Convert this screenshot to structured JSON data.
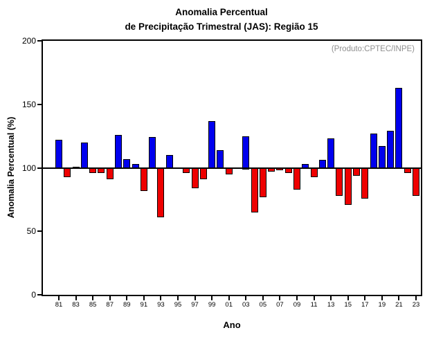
{
  "title": {
    "line1": "Anomalia Percentual",
    "line2": "de Precipitação Trimestral (JAS): Região 15"
  },
  "annotation": "(Produto:CPTEC/INPE)",
  "chart_data": {
    "type": "bar",
    "title": "Anomalia Percentual de Precipitação Trimestral (JAS): Região 15",
    "xlabel": "Ano",
    "ylabel": "Anomalia Percentual (%)",
    "ylim": [
      0,
      200
    ],
    "baseline": 100,
    "yticks": [
      0,
      50,
      100,
      150,
      200
    ],
    "xtick_labels": [
      "81",
      "83",
      "85",
      "87",
      "89",
      "91",
      "93",
      "95",
      "97",
      "99",
      "01",
      "03",
      "05",
      "07",
      "09",
      "11",
      "13",
      "15",
      "17",
      "19",
      "21",
      "23"
    ],
    "years": [
      "81",
      "82",
      "83",
      "84",
      "85",
      "86",
      "87",
      "88",
      "89",
      "90",
      "91",
      "92",
      "93",
      "94",
      "95",
      "96",
      "97",
      "98",
      "99",
      "00",
      "01",
      "02",
      "03",
      "04",
      "05",
      "06",
      "07",
      "08",
      "09",
      "10",
      "11",
      "12",
      "13",
      "14",
      "15",
      "16",
      "17",
      "18",
      "19",
      "20",
      "21",
      "22",
      "23"
    ],
    "values": [
      122,
      94,
      101,
      120,
      97,
      97,
      92,
      126,
      107,
      103,
      83,
      124,
      62,
      110,
      100,
      97,
      85,
      92,
      137,
      114,
      96,
      100,
      125,
      66,
      78,
      98,
      99,
      97,
      84,
      103,
      94,
      106,
      123,
      79,
      72,
      95,
      77,
      127,
      117,
      129,
      163,
      97,
      79
    ],
    "colors": {
      "above": "#0000ee",
      "below": "#ee0000"
    },
    "legend": "none",
    "grid": false
  }
}
